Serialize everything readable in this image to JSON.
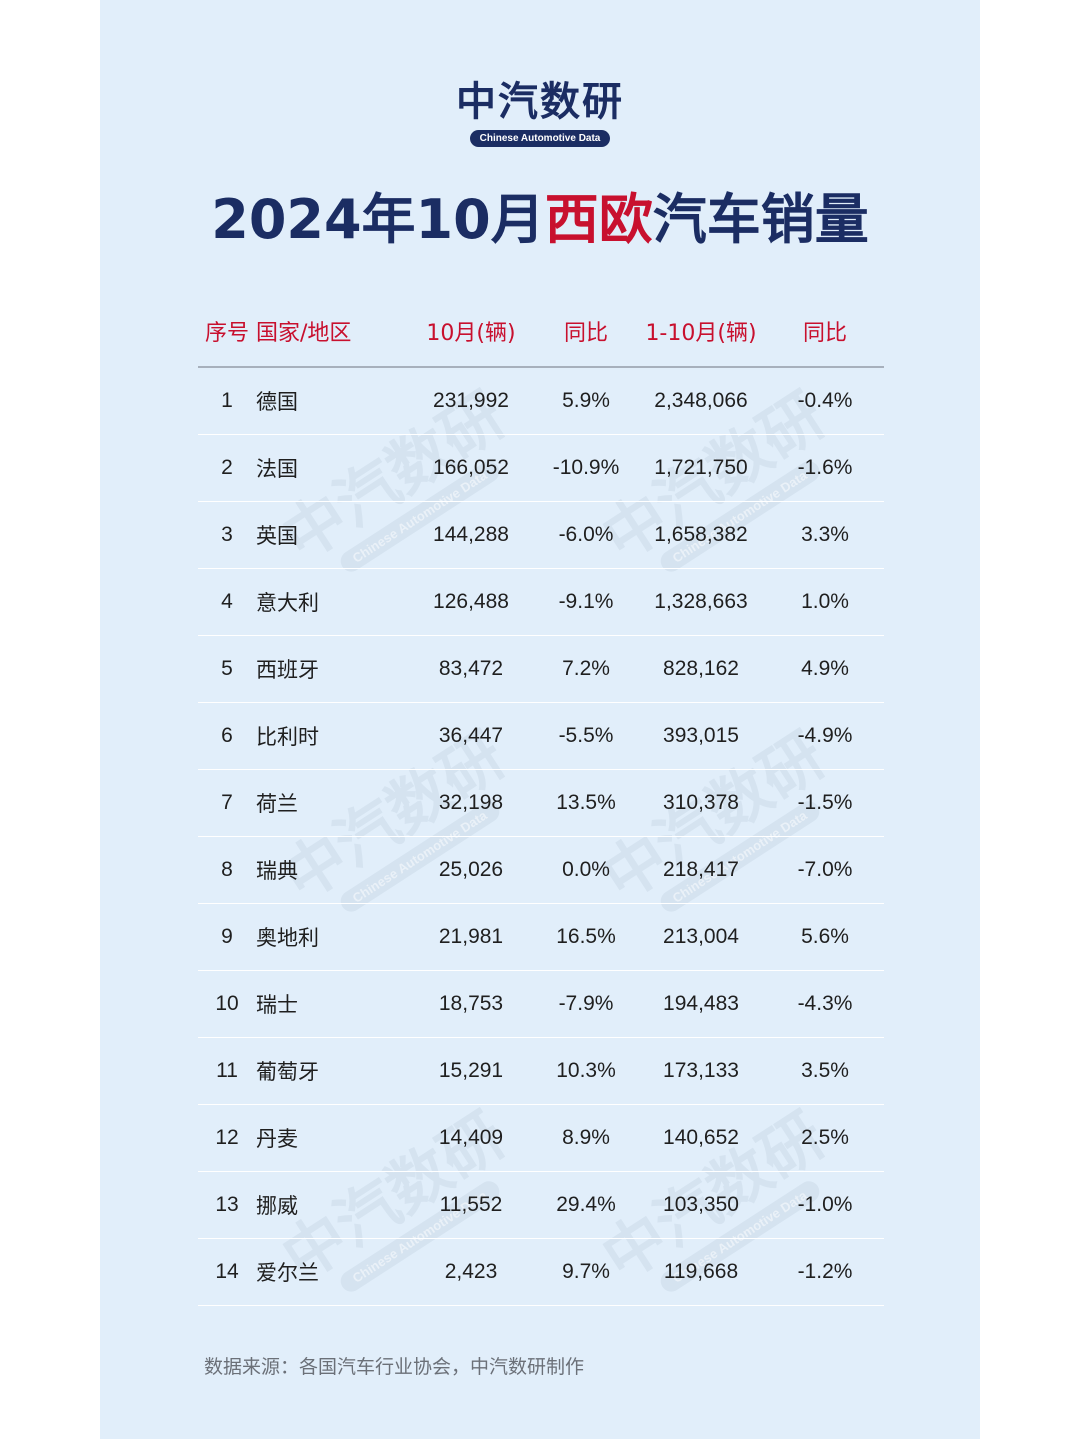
{
  "logo": {
    "text": "中汽数研",
    "tagline": "Chinese Automotive Data"
  },
  "title": {
    "prefix": "2024年10月",
    "highlight": "西欧",
    "suffix": "汽车销量"
  },
  "chart_data": {
    "type": "table",
    "columns": [
      "序号",
      "国家/地区",
      "10月(辆)",
      "同比",
      "1-10月(辆)",
      "同比"
    ],
    "rows": [
      [
        "1",
        "德国",
        "231,992",
        "5.9%",
        "2,348,066",
        "-0.4%"
      ],
      [
        "2",
        "法国",
        "166,052",
        "-10.9%",
        "1,721,750",
        "-1.6%"
      ],
      [
        "3",
        "英国",
        "144,288",
        "-6.0%",
        "1,658,382",
        "3.3%"
      ],
      [
        "4",
        "意大利",
        "126,488",
        "-9.1%",
        "1,328,663",
        "1.0%"
      ],
      [
        "5",
        "西班牙",
        "83,472",
        "7.2%",
        "828,162",
        "4.9%"
      ],
      [
        "6",
        "比利时",
        "36,447",
        "-5.5%",
        "393,015",
        "-4.9%"
      ],
      [
        "7",
        "荷兰",
        "32,198",
        "13.5%",
        "310,378",
        "-1.5%"
      ],
      [
        "8",
        "瑞典",
        "25,026",
        "0.0%",
        "218,417",
        "-7.0%"
      ],
      [
        "9",
        "奥地利",
        "21,981",
        "16.5%",
        "213,004",
        "5.6%"
      ],
      [
        "10",
        "瑞士",
        "18,753",
        "-7.9%",
        "194,483",
        "-4.3%"
      ],
      [
        "11",
        "葡萄牙",
        "15,291",
        "10.3%",
        "173,133",
        "3.5%"
      ],
      [
        "12",
        "丹麦",
        "14,409",
        "8.9%",
        "140,652",
        "2.5%"
      ],
      [
        "13",
        "挪威",
        "11,552",
        "29.4%",
        "103,350",
        "-1.0%"
      ],
      [
        "14",
        "爱尔兰",
        "2,423",
        "9.7%",
        "119,668",
        "-1.2%"
      ]
    ]
  },
  "footer": {
    "source": "数据来源：各国汽车行业协会，中汽数研制作"
  },
  "colors": {
    "navy": "#1b2d63",
    "accent_red": "#c8102e",
    "background": "#e1eefa"
  }
}
